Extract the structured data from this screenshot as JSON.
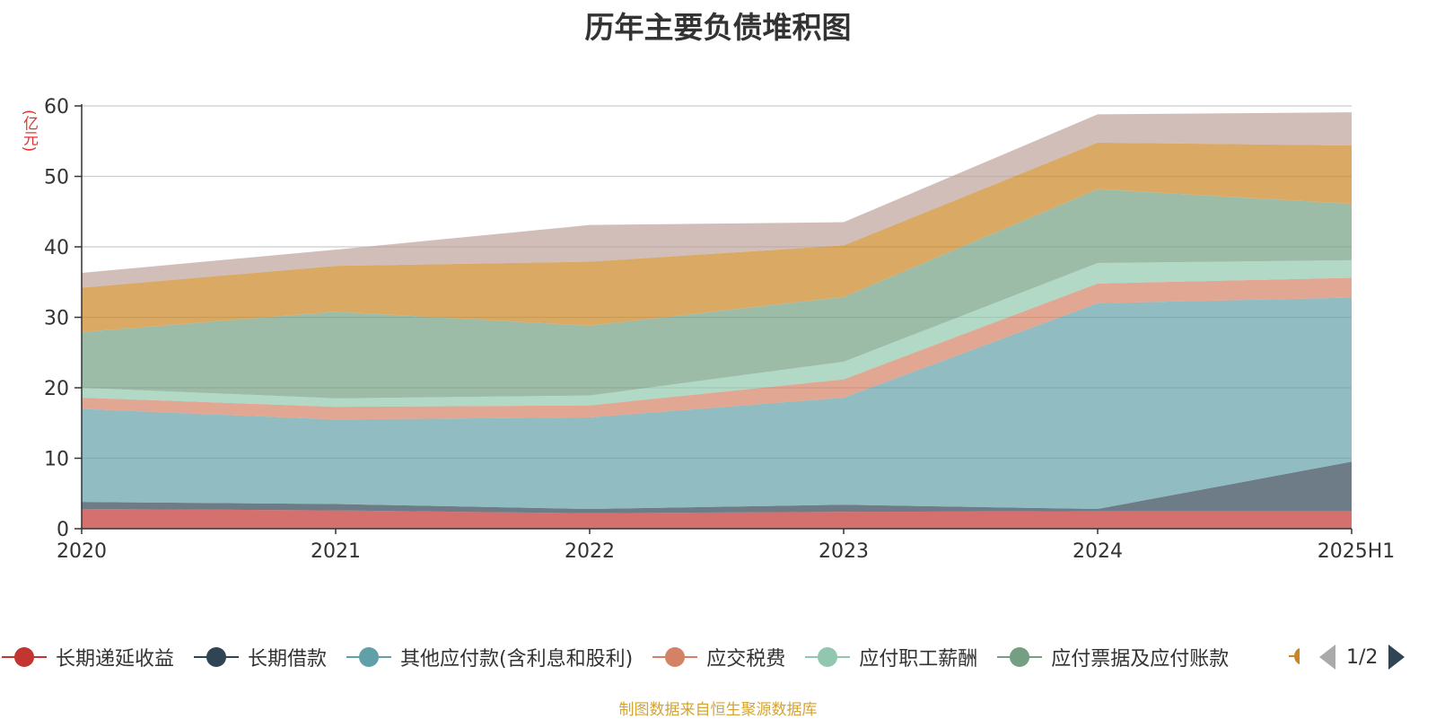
{
  "chart_data": {
    "type": "area",
    "title": "历年主要负债堆积图",
    "unit": "(亿元)",
    "stacked": true,
    "categories": [
      "2020",
      "2021",
      "2022",
      "2023",
      "2024",
      "2025H1"
    ],
    "ylim": [
      0,
      60
    ],
    "yticks": [
      "0",
      "10",
      "20",
      "30",
      "40",
      "50",
      "60"
    ],
    "grid": true,
    "legend_position": "bottom",
    "series": [
      {
        "name": "长期递延收益",
        "color": "#c23531",
        "values": [
          2.8,
          2.6,
          2.2,
          2.4,
          2.5,
          2.5
        ]
      },
      {
        "name": "长期借款",
        "color": "#2f4554",
        "values": [
          1.0,
          0.9,
          0.6,
          1.0,
          0.3,
          7.0
        ]
      },
      {
        "name": "其他应付款(含利息和股利)",
        "color": "#61a0a8",
        "values": [
          13.2,
          12.0,
          13.0,
          15.2,
          29.2,
          23.3
        ]
      },
      {
        "name": "应交税费",
        "color": "#d48265",
        "values": [
          1.6,
          1.8,
          1.7,
          2.6,
          2.8,
          2.8
        ]
      },
      {
        "name": "应付职工薪酬",
        "color": "#91c7ae",
        "values": [
          1.4,
          1.2,
          1.4,
          2.5,
          2.9,
          2.5
        ]
      },
      {
        "name": "应付票据及应付账款",
        "color": "#749f83",
        "values": [
          7.9,
          12.3,
          9.9,
          9.2,
          10.5,
          8.0
        ]
      },
      {
        "name": "",
        "color": "#ca8622",
        "values": [
          6.3,
          6.5,
          9.1,
          7.3,
          6.6,
          8.3
        ]
      },
      {
        "name": "",
        "color": "#bda29a",
        "values": [
          2.1,
          2.3,
          5.2,
          3.3,
          4.0,
          4.7
        ]
      }
    ]
  },
  "legend": {
    "page_indicator": "1/2",
    "prev_icon": "chevron-left-icon",
    "next_icon": "chevron-right-icon"
  },
  "source_note": "制图数据来自恒生聚源数据库"
}
